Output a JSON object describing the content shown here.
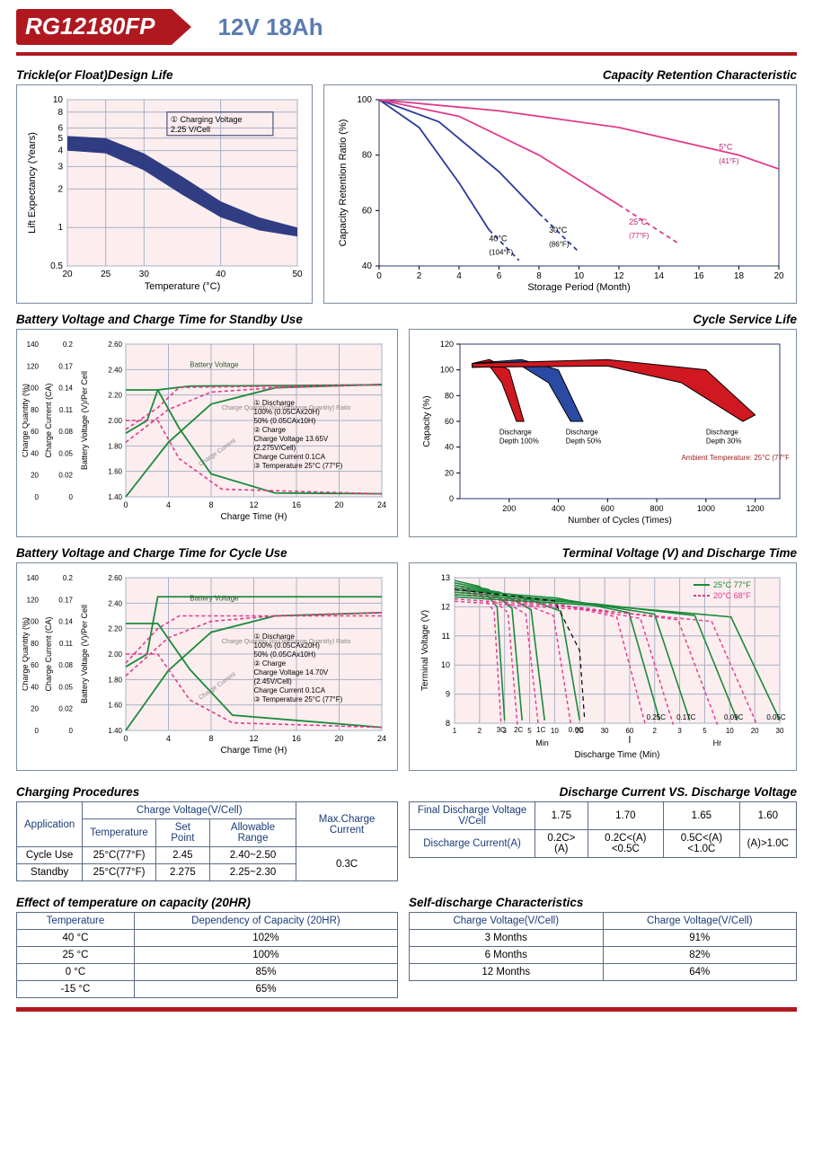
{
  "header": {
    "model": "RG12180FP",
    "spec": "12V  18Ah"
  },
  "chart_trickle": {
    "title": "Trickle(or Float)Design Life",
    "xlabel": "Temperature (°C)",
    "ylabel": "Lift Expectancy (Years)",
    "xticks": [
      20,
      25,
      30,
      40,
      50
    ],
    "yticks": [
      0.5,
      1,
      2,
      3,
      4,
      5,
      6,
      8,
      10
    ],
    "grid_color": "#a8b2c4",
    "bg": "#fcedef",
    "legend": "① Charging Voltage 2.25 V/Cell",
    "band_color": "#26347c",
    "band_upper": [
      [
        20,
        5.2
      ],
      [
        25,
        5.0
      ],
      [
        30,
        3.8
      ],
      [
        35,
        2.5
      ],
      [
        40,
        1.6
      ],
      [
        45,
        1.2
      ],
      [
        50,
        1.0
      ]
    ],
    "band_lower": [
      [
        20,
        4.0
      ],
      [
        25,
        3.8
      ],
      [
        30,
        2.8
      ],
      [
        35,
        1.8
      ],
      [
        40,
        1.2
      ],
      [
        45,
        0.95
      ],
      [
        50,
        0.85
      ]
    ]
  },
  "chart_capacity_retention": {
    "title": "Capacity Retention Characteristic",
    "xlabel": "Storage Period (Month)",
    "ylabel": "Capacity Retention Ratio (%)",
    "xticks": [
      0,
      2,
      4,
      6,
      8,
      10,
      12,
      14,
      16,
      18,
      20
    ],
    "yticks": [
      40,
      60,
      80,
      100
    ],
    "grid_color": "#a8b2c4",
    "bg": "#fcedef",
    "series": [
      {
        "label": "40°C (104°F)",
        "color": "#2a3a9c",
        "solid": [
          [
            0,
            100
          ],
          [
            2,
            90
          ],
          [
            4,
            70
          ],
          [
            5.5,
            53
          ]
        ],
        "dashed": [
          [
            5.5,
            53
          ],
          [
            7,
            42
          ]
        ]
      },
      {
        "label": "30°C (86°F)",
        "color": "#2a3a9c",
        "solid": [
          [
            0,
            100
          ],
          [
            3,
            92
          ],
          [
            6,
            74
          ],
          [
            8,
            59
          ]
        ],
        "dashed": [
          [
            8,
            59
          ],
          [
            10,
            45
          ]
        ]
      },
      {
        "label": "25°C (77°F)",
        "color": "#e03a8c",
        "solid": [
          [
            0,
            100
          ],
          [
            4,
            94
          ],
          [
            8,
            80
          ],
          [
            12,
            62
          ]
        ],
        "dashed": [
          [
            12,
            62
          ],
          [
            15,
            48
          ]
        ]
      },
      {
        "label": "5°C (41°F)",
        "color": "#e03a8c",
        "solid": [
          [
            0,
            100
          ],
          [
            6,
            96
          ],
          [
            12,
            90
          ],
          [
            18,
            80
          ],
          [
            20,
            75
          ]
        ],
        "dashed": []
      }
    ]
  },
  "chart_standby": {
    "title": "Battery Voltage and Charge Time for Standby Use",
    "xlabel": "Charge Time (H)",
    "y1": "Charge Quantity (%)",
    "y1ticks": [
      0,
      20,
      40,
      60,
      80,
      100,
      120,
      140
    ],
    "y2": "Charge Current (CA)",
    "y2ticks": [
      0,
      0.02,
      0.05,
      0.08,
      0.11,
      0.14,
      0.17,
      0.2
    ],
    "y3": "Battery Voltage (V)/Per Cell",
    "y3ticks": [
      0,
      1.4,
      1.6,
      1.8,
      2.0,
      2.2,
      2.4,
      2.6
    ],
    "xticks": [
      0,
      4,
      8,
      12,
      16,
      20,
      24
    ],
    "green": "#1a8a3a",
    "pink": "#e03a8c",
    "grid": "#a8b2c4",
    "bg": "#fcedef",
    "legend": [
      "① Discharge",
      "   100% (0.05CAx20H)",
      "   50% (0.05CAx10H)",
      "② Charge",
      "   Charge Voltage 13.65V",
      "   (2.275V/Cell)",
      "   Charge Current 0.1CA",
      "③ Temperature 25°C (77°F)"
    ],
    "curves": {
      "bv_solid": [
        [
          0,
          1.9
        ],
        [
          2,
          2.0
        ],
        [
          3,
          2.24
        ],
        [
          6,
          2.27
        ],
        [
          24,
          2.28
        ]
      ],
      "bv_dash": [
        [
          0,
          1.93
        ],
        [
          3,
          2.1
        ],
        [
          5,
          2.26
        ],
        [
          24,
          2.28
        ]
      ],
      "cq_solid": [
        [
          0,
          0
        ],
        [
          4,
          50
        ],
        [
          8,
          85
        ],
        [
          14,
          100
        ],
        [
          24,
          103
        ]
      ],
      "cq_dash": [
        [
          0,
          50
        ],
        [
          4,
          80
        ],
        [
          8,
          96
        ],
        [
          14,
          100
        ],
        [
          24,
          103
        ]
      ],
      "cc_solid": [
        [
          0,
          0.14
        ],
        [
          3,
          0.14
        ],
        [
          5,
          0.09
        ],
        [
          8,
          0.03
        ],
        [
          14,
          0.005
        ],
        [
          24,
          0.004
        ]
      ],
      "cc_dash": [
        [
          0,
          0.1
        ],
        [
          3,
          0.1
        ],
        [
          5,
          0.05
        ],
        [
          9,
          0.01
        ],
        [
          24,
          0.004
        ]
      ]
    }
  },
  "chart_cycle_life": {
    "title": "Cycle Service Life",
    "xlabel": "Number of Cycles (Times)",
    "ylabel": "Capacity (%)",
    "xticks": [
      200,
      400,
      600,
      800,
      1000,
      1200
    ],
    "yticks": [
      0,
      20,
      40,
      60,
      80,
      100,
      120
    ],
    "grid": "#a8b2c4",
    "bg": "#fcedef",
    "bands": [
      {
        "label": "Discharge Depth 100%",
        "outer": "#000",
        "fill": "#d01820",
        "upper": [
          [
            50,
            105
          ],
          [
            120,
            108
          ],
          [
            200,
            100
          ],
          [
            260,
            60
          ]
        ],
        "lower": [
          [
            50,
            102
          ],
          [
            120,
            103
          ],
          [
            170,
            90
          ],
          [
            230,
            60
          ]
        ]
      },
      {
        "label": "Discharge Depth 50%",
        "outer": "#000",
        "fill": "#2a4aa4",
        "upper": [
          [
            50,
            105
          ],
          [
            250,
            108
          ],
          [
            400,
            100
          ],
          [
            500,
            60
          ]
        ],
        "lower": [
          [
            50,
            102
          ],
          [
            250,
            103
          ],
          [
            360,
            90
          ],
          [
            450,
            60
          ]
        ]
      },
      {
        "label": "Discharge Depth 30%",
        "outer": "#000",
        "fill": "#d01820",
        "upper": [
          [
            50,
            105
          ],
          [
            600,
            108
          ],
          [
            1000,
            100
          ],
          [
            1200,
            65
          ]
        ],
        "lower": [
          [
            50,
            102
          ],
          [
            600,
            103
          ],
          [
            900,
            90
          ],
          [
            1150,
            60
          ]
        ]
      }
    ],
    "note": "Ambient Temperature: 25°C (77°F)"
  },
  "chart_cycle_charge": {
    "title": "Battery Voltage and Charge Time for Cycle Use",
    "legend": [
      "① Discharge",
      "   100% (0.05CAx20H)",
      "   50% (0.05CAx10H)",
      "② Charge",
      "   Charge Voltage 14.70V",
      "   (2.45V/Cell)",
      "   Charge Current 0.1CA",
      "③ Temperature 25°C (77°F)"
    ]
  },
  "chart_terminal": {
    "title": "Terminal Voltage (V) and Discharge Time",
    "ylabel": "Terminal Voltage (V)",
    "xlabel": "Discharge Time (Min)",
    "yticks": [
      0,
      8,
      9,
      10,
      11,
      12,
      13
    ],
    "legend": [
      {
        "c": "#1a8a3a",
        "t": "25°C 77°F"
      },
      {
        "c": "#e03a8c",
        "t": "20°C 68°F"
      }
    ],
    "xtick_labels": [
      "1",
      "2",
      "3",
      "5",
      "10",
      "20",
      "30",
      "60",
      "2",
      "3",
      "5",
      "10",
      "20",
      "30"
    ],
    "xsection_labels": [
      "Min",
      "Hr"
    ],
    "rates": [
      "3C",
      "2C",
      "1C",
      "0.6C",
      "0.25C",
      "0.17C",
      "0.09C",
      "0.05C"
    ],
    "grid": "#a8b2c4",
    "bg": "#fcedef"
  },
  "table_charging": {
    "title": "Charging Procedures",
    "h1": "Application",
    "h2": "Charge Voltage(V/Cell)",
    "h3": "Max.Charge Current",
    "sub": [
      "Temperature",
      "Set Point",
      "Allowable Range"
    ],
    "rows": [
      [
        "Cycle Use",
        "25°C(77°F)",
        "2.45",
        "2.40~2.50"
      ],
      [
        "Standby",
        "25°C(77°F)",
        "2.275",
        "2.25~2.30"
      ]
    ],
    "maxcurrent": "0.3C"
  },
  "table_discharge": {
    "title": "Discharge Current VS. Discharge Voltage",
    "r1": [
      "Final Discharge Voltage V/Cell",
      "1.75",
      "1.70",
      "1.65",
      "1.60"
    ],
    "r2": [
      "Discharge Current(A)",
      "0.2C>(A)",
      "0.2C<(A)<0.5C",
      "0.5C<(A)<1.0C",
      "(A)>1.0C"
    ]
  },
  "table_temp": {
    "title": "Effect of temperature on capacity (20HR)",
    "h": [
      "Temperature",
      "Dependency of Capacity (20HR)"
    ],
    "rows": [
      [
        "40 °C",
        "102%"
      ],
      [
        "25 °C",
        "100%"
      ],
      [
        "0 °C",
        "85%"
      ],
      [
        "-15 °C",
        "65%"
      ]
    ]
  },
  "table_self": {
    "title": "Self-discharge Characteristics",
    "h": [
      "Charge Voltage(V/Cell)",
      "Charge Voltage(V/Cell)"
    ],
    "rows": [
      [
        "3 Months",
        "91%"
      ],
      [
        "6 Months",
        "82%"
      ],
      [
        "12 Months",
        "64%"
      ]
    ]
  }
}
